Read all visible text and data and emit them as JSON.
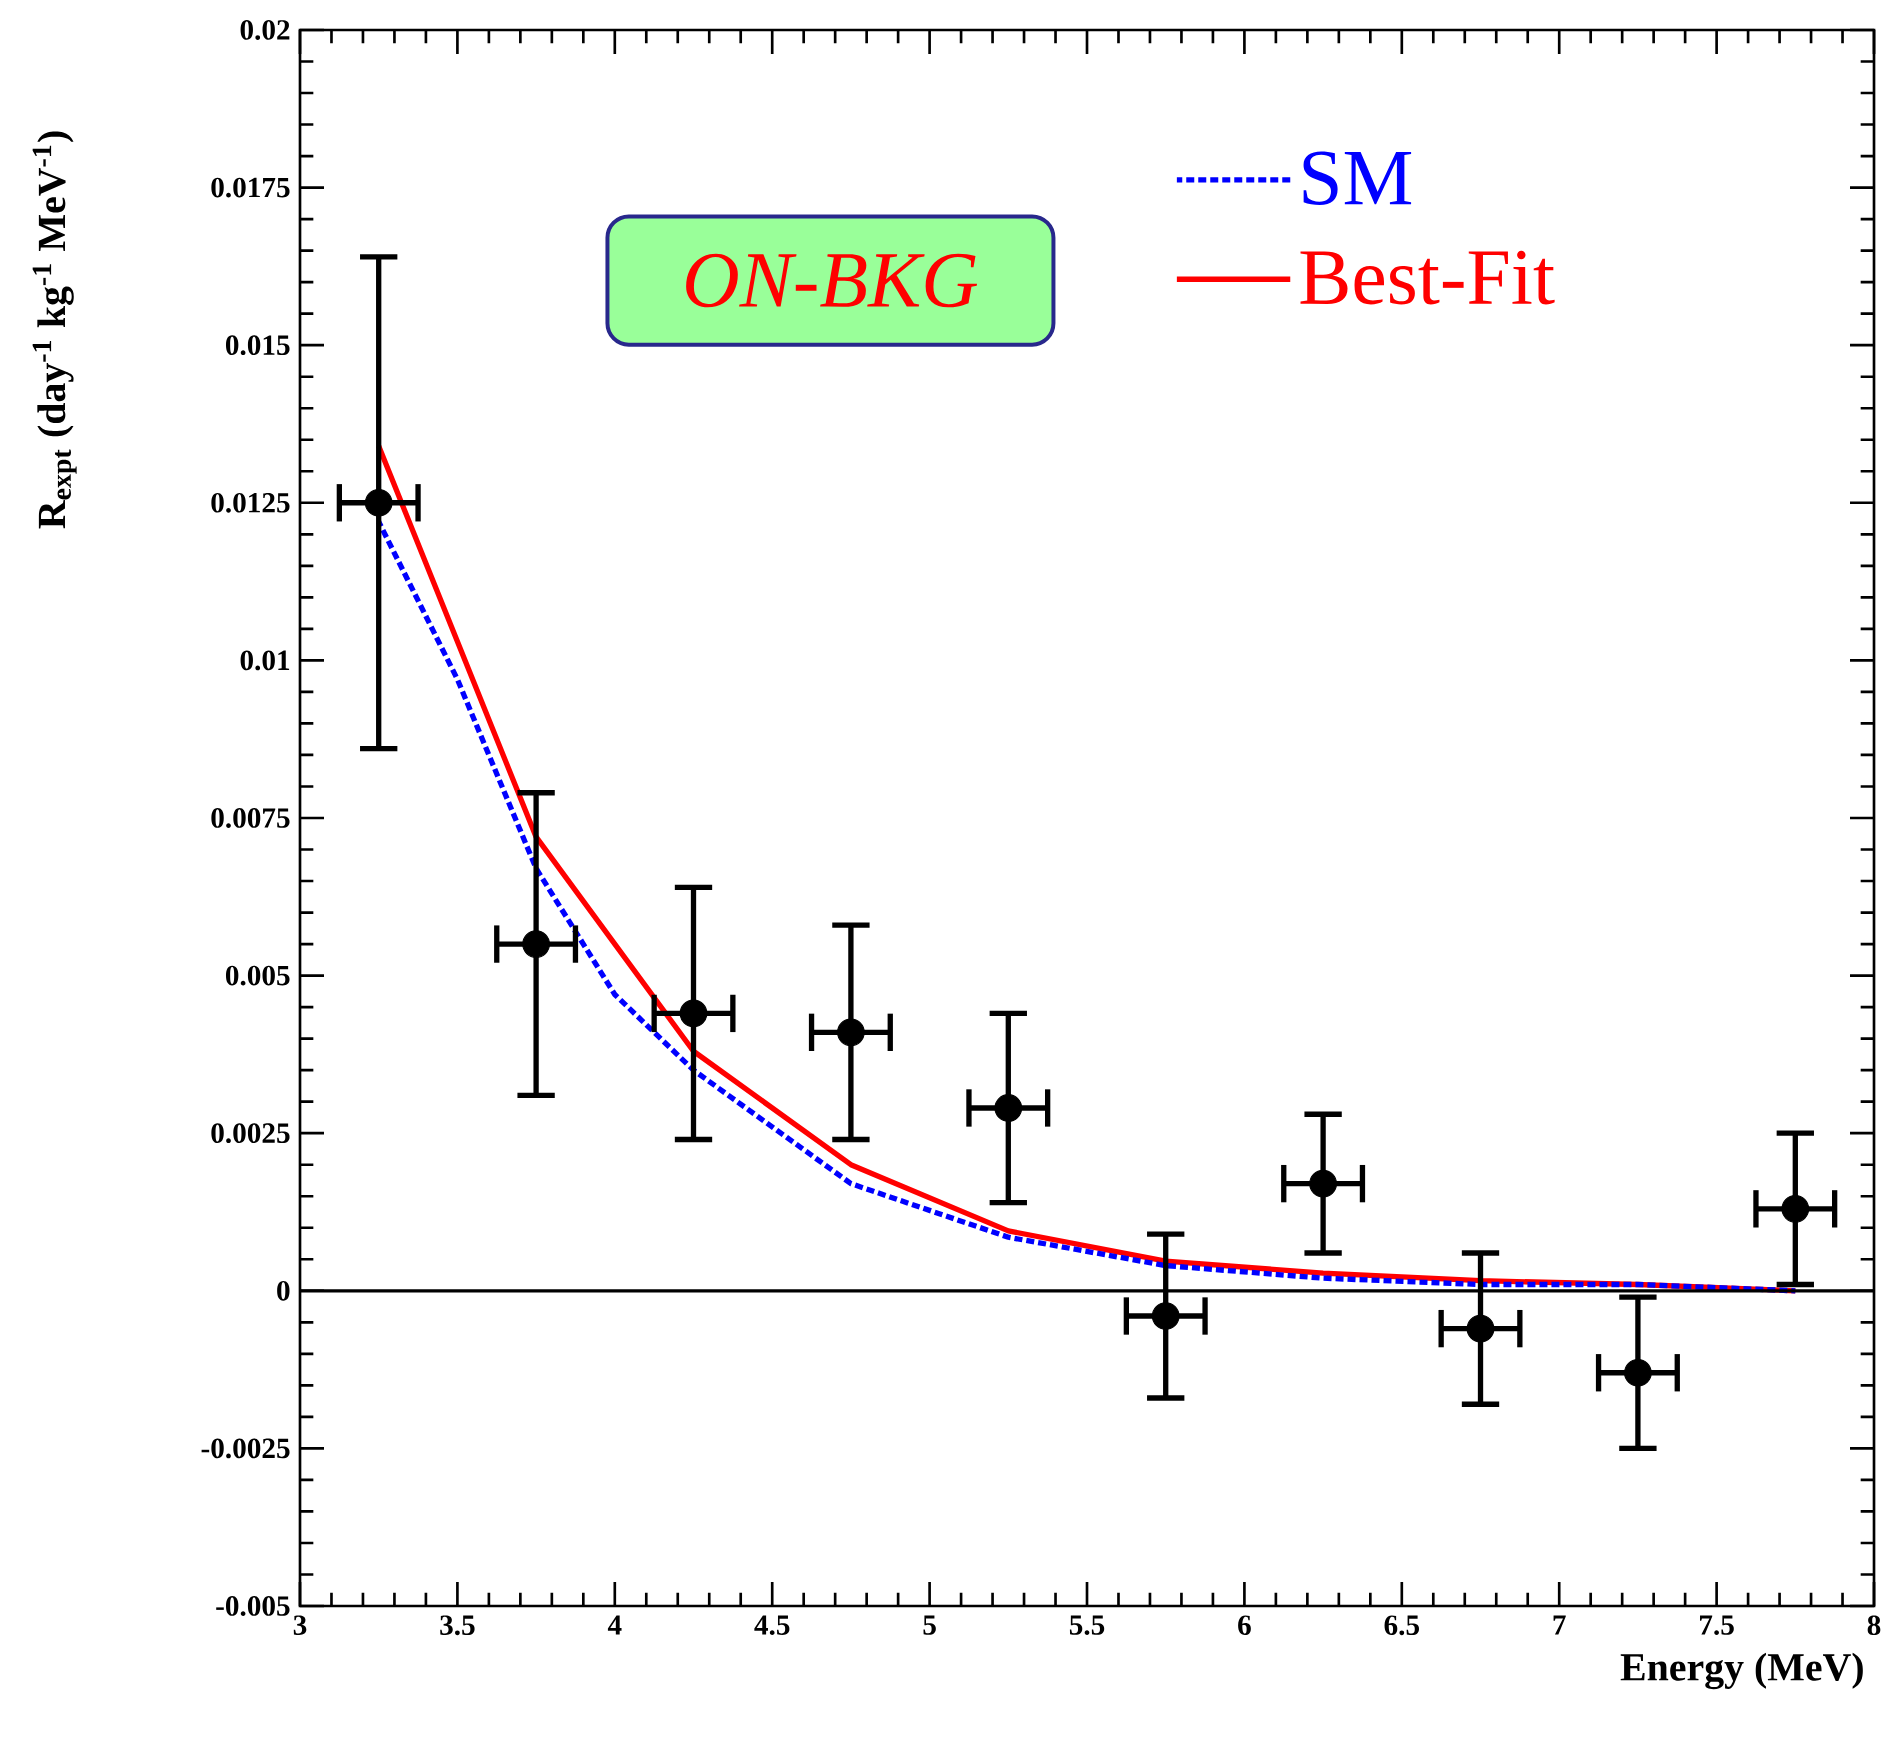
{
  "chart_data": {
    "type": "line",
    "xlabel": "Energy (MeV)",
    "ylabel": "R$_{expt}$ (day$^{-1}$ kg$^{-1}$ MeV$^{-1}$)",
    "xlim": [
      3,
      8
    ],
    "ylim": [
      -0.005,
      0.02
    ],
    "xticks": [
      3,
      3.5,
      4,
      4.5,
      5,
      5.5,
      6,
      6.5,
      7,
      7.5,
      8
    ],
    "yticks": [
      -0.005,
      -0.0025,
      0,
      0.0025,
      0.005,
      0.0075,
      0.01,
      0.0125,
      0.015,
      0.0175,
      0.02
    ],
    "legend": "top right",
    "annotations": [
      "ON-BKG"
    ],
    "ref_lines": [
      {
        "axis": "y",
        "value": 0,
        "color": "#000000"
      }
    ],
    "series": [
      {
        "type": "scatter",
        "marker": "circle",
        "color": "#000000",
        "x": [
          3.25,
          3.75,
          4.25,
          4.75,
          5.25,
          5.75,
          6.25,
          6.75,
          7.25,
          7.75
        ],
        "values": [
          0.0125,
          0.0055,
          0.0044,
          0.0041,
          0.0029,
          -0.0004,
          0.0017,
          -0.0006,
          -0.0013,
          0.0013
        ],
        "errors": [
          0.0039,
          0.0024,
          0.002,
          0.0017,
          0.0015,
          0.0013,
          0.0011,
          0.0012,
          0.0012,
          0.0012
        ],
        "xerrors": [
          0.125,
          0.125,
          0.125,
          0.125,
          0.125,
          0.125,
          0.125,
          0.125,
          0.125,
          0.125
        ]
      },
      {
        "name": "SM",
        "color": "#0000ff",
        "line_style": "dashed",
        "marker": "none",
        "x": [
          3.25,
          3.5,
          3.75,
          4.0,
          4.25,
          4.75,
          5.25,
          5.75,
          6.25,
          6.75,
          7.25,
          7.75
        ],
        "values": [
          0.0122,
          0.0097,
          0.0067,
          0.0047,
          0.0035,
          0.0017,
          0.00085,
          0.0004,
          0.0002,
          0.0001,
          0.0001,
          0
        ]
      },
      {
        "name": "Best-Fit",
        "color": "#ff0000",
        "line_style": "solid",
        "marker": "none",
        "x": [
          3.25,
          3.75,
          4.25,
          4.75,
          5.25,
          5.75,
          6.25,
          6.75,
          7.25,
          7.75
        ],
        "values": [
          0.0134,
          0.0072,
          0.0038,
          0.002,
          0.00095,
          0.00047,
          0.00028,
          0.00016,
          0.0001,
          0
        ]
      }
    ]
  }
}
